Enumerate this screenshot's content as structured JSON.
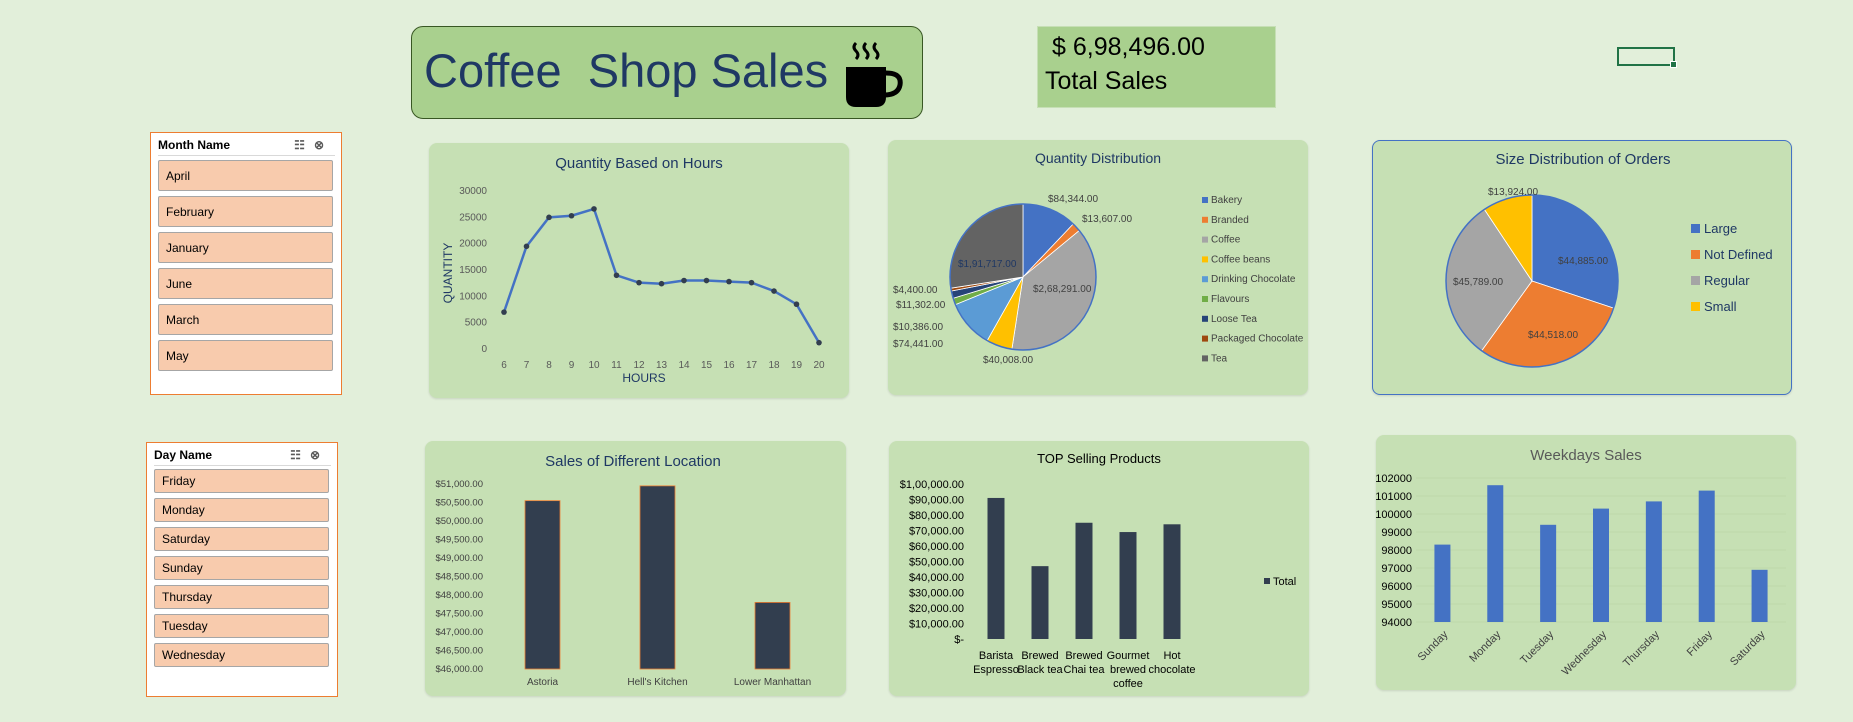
{
  "header": {
    "title": "Coffee  Shop Sales",
    "cup_icon": "coffee-cup-icon"
  },
  "kpi": {
    "value": "$ 6,98,496.00",
    "label": "Total Sales"
  },
  "slicers": {
    "month": {
      "title": "Month Name",
      "items": [
        "April",
        "February",
        "January",
        "June",
        "March",
        "May"
      ]
    },
    "day": {
      "title": "Day Name",
      "items": [
        "Friday",
        "Monday",
        "Saturday",
        "Sunday",
        "Thursday",
        "Tuesday",
        "Wednesday"
      ]
    }
  },
  "colors": {
    "blue": "#4472c4",
    "orange": "#ed7d31",
    "gray": "#a5a5a5",
    "yellow": "#ffc000",
    "navy_bar": "#323e4f",
    "card": "#c6e0b4",
    "slicer_item": "#f8cbad"
  },
  "chart_data": [
    {
      "id": "hours",
      "type": "line",
      "title": "Quantity Based on Hours",
      "xlabel": "HOURS",
      "ylabel": "QUANTITY",
      "x": [
        6,
        7,
        8,
        9,
        10,
        11,
        12,
        13,
        14,
        15,
        16,
        17,
        18,
        19,
        20
      ],
      "values": [
        7000,
        19500,
        25000,
        25300,
        26600,
        14000,
        12600,
        12400,
        13000,
        13000,
        12800,
        12600,
        11000,
        8500,
        1200
      ],
      "ylim": [
        0,
        30000
      ],
      "yticks": [
        "30000",
        "25000",
        "20000",
        "15000",
        "10000",
        "5000",
        "0"
      ]
    },
    {
      "id": "qty-dist",
      "type": "pie",
      "title": "Quantity Distribution",
      "legend": "right",
      "categories": [
        "Bakery",
        "Branded",
        "Coffee",
        "Coffee beans",
        "Drinking Chocolate",
        "Flavours",
        "Loose Tea",
        "Packaged Chocolate",
        "Tea"
      ],
      "values": [
        84344,
        13607,
        268291,
        40008,
        74441,
        10386,
        11302,
        4400,
        191717
      ],
      "labels": [
        "$84,344.00",
        "$13,607.00",
        "$2,68,291.00",
        "$40,008.00",
        "$74,441.00",
        "$10,386.00",
        "$11,302.00",
        "$4,400.00",
        "$1,91,717.00"
      ],
      "colors": [
        "#4472c4",
        "#ed7d31",
        "#a5a5a5",
        "#ffc000",
        "#5b9bd5",
        "#70ad47",
        "#264478",
        "#9e480e",
        "#636363"
      ]
    },
    {
      "id": "size-dist",
      "type": "pie",
      "title": "Size Distribution of Orders",
      "legend": "right",
      "categories": [
        "Large",
        "Not Defined",
        "Regular",
        "Small"
      ],
      "values": [
        44885,
        44518,
        45789,
        13924
      ],
      "labels": [
        "$44,885.00",
        "$44,518.00",
        "$45,789.00",
        "$13,924.00"
      ],
      "colors": [
        "#4472c4",
        "#ed7d31",
        "#a5a5a5",
        "#ffc000"
      ]
    },
    {
      "id": "location",
      "type": "bar",
      "title": "Sales of Different Location",
      "categories": [
        "Astoria",
        "Hell's Kitchen",
        "Lower Manhattan"
      ],
      "values": [
        50550,
        50950,
        47800
      ],
      "ylim": [
        46000,
        51000
      ],
      "yticks": [
        "$51,000.00",
        "$50,500.00",
        "$50,000.00",
        "$49,500.00",
        "$49,000.00",
        "$48,500.00",
        "$48,000.00",
        "$47,500.00",
        "$47,000.00",
        "$46,500.00",
        "$46,000.00"
      ]
    },
    {
      "id": "top-products",
      "type": "bar",
      "title": "TOP Selling Products",
      "legend": "right",
      "series_name": "Total",
      "categories": [
        "Barista Espresso",
        "Brewed Black tea",
        "Brewed Chai tea",
        "Gourmet brewed coffee",
        "Hot chocolate"
      ],
      "category_lines": [
        [
          "Barista",
          "Espresso"
        ],
        [
          "Brewed",
          "Black tea"
        ],
        [
          "Brewed",
          "Chai tea"
        ],
        [
          "Gourmet",
          "brewed",
          "coffee"
        ],
        [
          "Hot",
          "chocolate"
        ]
      ],
      "values": [
        91000,
        47000,
        75000,
        69000,
        74000
      ],
      "ylim": [
        0,
        100000
      ],
      "yticks": [
        "$1,00,000.00",
        "$90,000.00",
        "$80,000.00",
        "$70,000.00",
        "$60,000.00",
        "$50,000.00",
        "$40,000.00",
        "$30,000.00",
        "$20,000.00",
        "$10,000.00",
        "$-"
      ]
    },
    {
      "id": "weekdays",
      "type": "bar",
      "title": "Weekdays Sales",
      "categories": [
        "Sunday",
        "Monday",
        "Tuesday",
        "Wednesday",
        "Thursday",
        "Friday",
        "Saturday"
      ],
      "values": [
        98300,
        101600,
        99400,
        100300,
        100700,
        101300,
        96900
      ],
      "ylim": [
        94000,
        102000
      ],
      "yticks": [
        "102000",
        "101000",
        "100000",
        "99000",
        "98000",
        "97000",
        "96000",
        "95000",
        "94000"
      ]
    }
  ]
}
